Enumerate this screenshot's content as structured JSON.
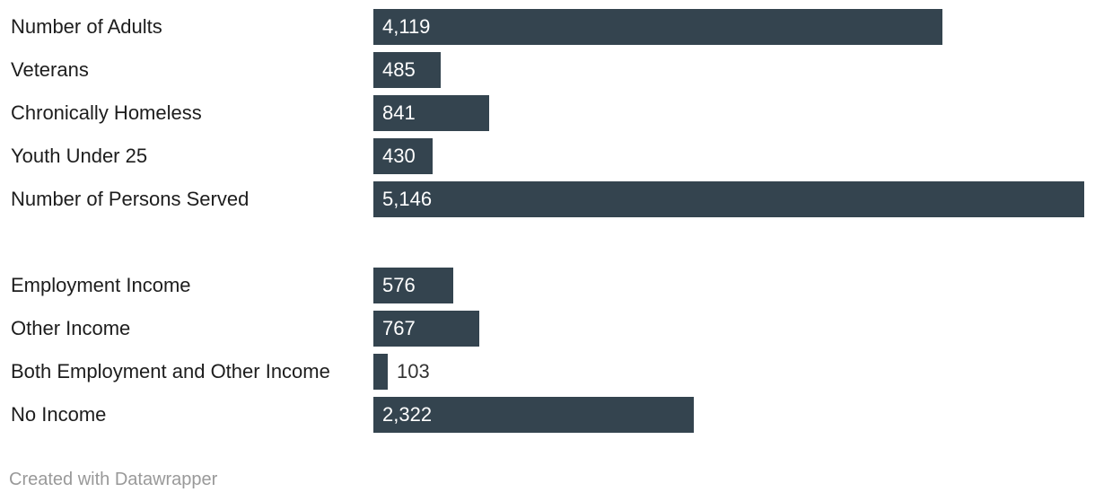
{
  "chart_data": {
    "type": "bar",
    "orientation": "horizontal",
    "bar_color": "#34444f",
    "groups": [
      {
        "categories": [
          "Number of Adults",
          "Veterans",
          "Chronically Homeless",
          "Youth Under 25",
          "Number of Persons Served"
        ],
        "values": [
          4119,
          485,
          841,
          430,
          5146
        ],
        "value_labels": [
          "4,119",
          "485",
          "841",
          "430",
          "5,146"
        ]
      },
      {
        "categories": [
          "Employment Income",
          "Other Income",
          "Both Employment and Other Income",
          "No Income"
        ],
        "values": [
          576,
          767,
          103,
          2322
        ],
        "value_labels": [
          "576",
          "767",
          "103",
          "2,322"
        ]
      }
    ],
    "xlim": [
      0,
      5146
    ],
    "grid": false,
    "legend": "none"
  },
  "footer": {
    "credit": "Created with Datawrapper"
  }
}
